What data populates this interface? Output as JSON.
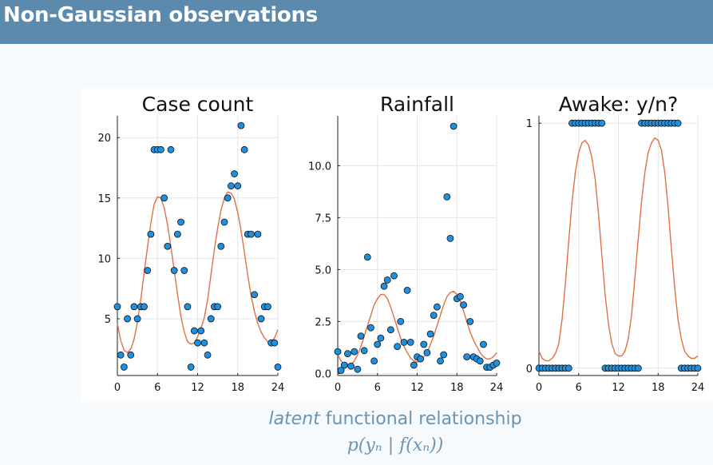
{
  "header": {
    "title": "Non-Gaussian observations"
  },
  "caption": {
    "latent_word": "latent",
    "rest": " functional relationship",
    "formula": "p(yₙ | f(xₙ))"
  },
  "colors": {
    "header": "#5b8aad",
    "points": "#1e90e0",
    "curve": "#e26f46",
    "caption": "#6a93b4"
  },
  "chart_data": [
    {
      "type": "scatter",
      "title": "Case count",
      "xlim": [
        0,
        24
      ],
      "ylim": [
        0.3,
        21.8
      ],
      "xticks": [
        0,
        6,
        12,
        18,
        24
      ],
      "xtick_labels": [
        "0",
        "6",
        "12",
        "18",
        "24"
      ],
      "yticks": [
        5,
        10,
        15,
        20
      ],
      "ytick_labels": [
        "5",
        "10",
        "15",
        "20"
      ],
      "grid": true,
      "series": [
        {
          "kind": "points",
          "x": [
            0,
            0.5,
            1,
            1.5,
            2,
            2.5,
            3,
            3.5,
            4,
            4.5,
            5,
            5.5,
            6,
            6.5,
            7,
            7.5,
            8,
            8.5,
            9,
            9.5,
            10,
            10.5,
            11,
            11.5,
            12,
            12.5,
            13,
            13.5,
            14,
            14.5,
            15,
            15.5,
            16,
            16.5,
            17,
            17.5,
            18,
            18.5,
            19,
            19.5,
            20,
            20.5,
            21,
            21.5,
            22,
            22.5,
            23,
            23.5,
            24
          ],
          "y": [
            6,
            2,
            1,
            5,
            2,
            6,
            5,
            6,
            6,
            9,
            12,
            19,
            19,
            19,
            15,
            11,
            19,
            9,
            12,
            13,
            9,
            6,
            1,
            4,
            3,
            4,
            3,
            2,
            5,
            6,
            6,
            11,
            13,
            15,
            16,
            17,
            16,
            21,
            19,
            12,
            12,
            7,
            12,
            5,
            6,
            6,
            3,
            3,
            1
          ]
        },
        {
          "kind": "line",
          "x": [
            0,
            0.5,
            1,
            1.5,
            2,
            2.5,
            3,
            3.5,
            4,
            4.5,
            5,
            5.5,
            6,
            6.5,
            7,
            7.5,
            8,
            8.5,
            9,
            9.5,
            10,
            10.5,
            11,
            11.5,
            12,
            12.5,
            13,
            13.5,
            14,
            14.5,
            15,
            15.5,
            16,
            16.5,
            17,
            17.5,
            18,
            18.5,
            19,
            19.5,
            20,
            20.5,
            21,
            21.5,
            22,
            22.5,
            23,
            23.5,
            24
          ],
          "y": [
            4.6,
            3.2,
            2.4,
            2.2,
            2.5,
            3.3,
            4.7,
            6.6,
            8.8,
            10.9,
            12.9,
            14.5,
            15.1,
            15.0,
            14.2,
            12.8,
            11.0,
            9.0,
            7.0,
            5.2,
            3.9,
            3.1,
            2.9,
            3.0,
            3.5,
            4.2,
            5.1,
            6.6,
            8.7,
            10.7,
            12.5,
            14.0,
            15.0,
            15.5,
            15.4,
            14.9,
            13.8,
            12.3,
            10.5,
            8.6,
            6.9,
            5.6,
            4.6,
            3.9,
            3.4,
            3.1,
            3.1,
            3.4,
            4.1
          ]
        }
      ]
    },
    {
      "type": "scatter",
      "title": "Rainfall",
      "xlim": [
        0,
        24
      ],
      "ylim": [
        -0.1,
        12.4
      ],
      "xticks": [
        0,
        6,
        12,
        18,
        24
      ],
      "xtick_labels": [
        "0",
        "6",
        "12",
        "18",
        "24"
      ],
      "yticks": [
        0,
        2.5,
        5,
        7.5,
        10
      ],
      "ytick_labels": [
        "0.0",
        "2.5",
        "5.0",
        "7.5",
        "10.0"
      ],
      "grid": true,
      "series": [
        {
          "kind": "points",
          "x": [
            0,
            0.5,
            1,
            1.5,
            2,
            2.5,
            3,
            3.5,
            4,
            4.5,
            5,
            5.5,
            6,
            6.5,
            7,
            7.5,
            8,
            8.5,
            9,
            9.5,
            10,
            10.5,
            11,
            11.5,
            12,
            12.5,
            13,
            13.5,
            14,
            14.5,
            15,
            15.5,
            16,
            16.5,
            17,
            17.5,
            18,
            18.5,
            19,
            19.5,
            20,
            20.5,
            21,
            21.5,
            22,
            22.5,
            23,
            23.5,
            24
          ],
          "y": [
            1.05,
            0.15,
            0.4,
            0.95,
            0.35,
            1.05,
            0.2,
            1.8,
            1.1,
            5.6,
            2.2,
            0.6,
            1.4,
            1.7,
            4.2,
            4.5,
            2.1,
            4.7,
            1.3,
            2.5,
            1.5,
            4.0,
            1.5,
            0.4,
            0.8,
            0.7,
            1.4,
            1.0,
            1.9,
            2.8,
            3.2,
            0.6,
            0.9,
            8.5,
            6.5,
            11.9,
            3.6,
            3.7,
            3.3,
            0.8,
            2.5,
            0.8,
            0.7,
            0.6,
            1.4,
            0.3,
            0.3,
            0.4,
            0.5
          ]
        },
        {
          "kind": "line",
          "x": [
            0,
            0.5,
            1,
            1.5,
            2,
            2.5,
            3,
            3.5,
            4,
            4.5,
            5,
            5.5,
            6,
            6.5,
            7,
            7.5,
            8,
            8.5,
            9,
            9.5,
            10,
            10.5,
            11,
            11.5,
            12,
            12.5,
            13,
            13.5,
            14,
            14.5,
            15,
            15.5,
            16,
            16.5,
            17,
            17.5,
            18,
            18.5,
            19,
            19.5,
            20,
            20.5,
            21,
            21.5,
            22,
            22.5,
            23,
            23.5,
            24
          ],
          "y": [
            0.9,
            0.6,
            0.4,
            0.35,
            0.4,
            0.6,
            0.9,
            1.3,
            1.8,
            2.3,
            2.8,
            3.3,
            3.6,
            3.8,
            3.8,
            3.6,
            3.2,
            2.7,
            2.2,
            1.7,
            1.3,
            1.0,
            0.75,
            0.6,
            0.55,
            0.6,
            0.8,
            1.0,
            1.4,
            1.8,
            2.3,
            2.8,
            3.3,
            3.7,
            3.9,
            3.95,
            3.8,
            3.5,
            3.0,
            2.5,
            2.0,
            1.6,
            1.3,
            1.0,
            0.8,
            0.7,
            0.7,
            0.8,
            1.0
          ]
        }
      ]
    },
    {
      "type": "scatter",
      "title": "Awake: y/n?",
      "xlim": [
        0,
        24
      ],
      "ylim": [
        -0.03,
        1.03
      ],
      "xticks": [
        0,
        6,
        12,
        18,
        24
      ],
      "xtick_labels": [
        "0",
        "6",
        "12",
        "18",
        "24"
      ],
      "yticks": [
        0,
        1
      ],
      "ytick_labels": [
        "0",
        "1"
      ],
      "grid": true,
      "series": [
        {
          "kind": "points",
          "x": [
            0,
            0.5,
            1,
            1.5,
            2,
            2.5,
            3,
            3.5,
            4,
            4.5,
            5,
            5.5,
            6,
            6.5,
            7,
            7.5,
            8,
            8.5,
            9,
            9.5,
            10,
            10.5,
            11,
            11.5,
            12,
            12.5,
            13,
            13.5,
            14,
            14.5,
            15,
            15.5,
            16,
            16.5,
            17,
            17.5,
            18,
            18.5,
            19,
            19.5,
            20,
            20.5,
            21,
            21.5,
            22,
            22.5,
            23,
            23.5,
            24
          ],
          "y": [
            0,
            0,
            0,
            0,
            0,
            0,
            0,
            0,
            0,
            0,
            1,
            1,
            1,
            1,
            1,
            1,
            1,
            1,
            1,
            1,
            0,
            0,
            0,
            0,
            0,
            0,
            0,
            0,
            0,
            0,
            0,
            1,
            1,
            1,
            1,
            1,
            1,
            1,
            1,
            1,
            1,
            1,
            1,
            0,
            0,
            0,
            0,
            0,
            0
          ]
        },
        {
          "kind": "line",
          "x": [
            0,
            0.5,
            1,
            1.5,
            2,
            2.5,
            3,
            3.5,
            4,
            4.5,
            5,
            5.5,
            6,
            6.5,
            7,
            7.5,
            8,
            8.5,
            9,
            9.5,
            10,
            10.5,
            11,
            11.5,
            12,
            12.5,
            13,
            13.5,
            14,
            14.5,
            15,
            15.5,
            16,
            16.5,
            17,
            17.5,
            18,
            18.5,
            19,
            19.5,
            20,
            20.5,
            21,
            21.5,
            22,
            22.5,
            23,
            23.5,
            24
          ],
          "y": [
            0.07,
            0.04,
            0.03,
            0.03,
            0.04,
            0.06,
            0.1,
            0.2,
            0.35,
            0.52,
            0.68,
            0.8,
            0.88,
            0.92,
            0.93,
            0.91,
            0.86,
            0.77,
            0.63,
            0.46,
            0.3,
            0.18,
            0.1,
            0.06,
            0.05,
            0.05,
            0.07,
            0.12,
            0.22,
            0.37,
            0.53,
            0.68,
            0.8,
            0.88,
            0.92,
            0.94,
            0.93,
            0.89,
            0.8,
            0.66,
            0.49,
            0.33,
            0.2,
            0.12,
            0.07,
            0.05,
            0.04,
            0.04,
            0.05
          ]
        }
      ]
    }
  ]
}
